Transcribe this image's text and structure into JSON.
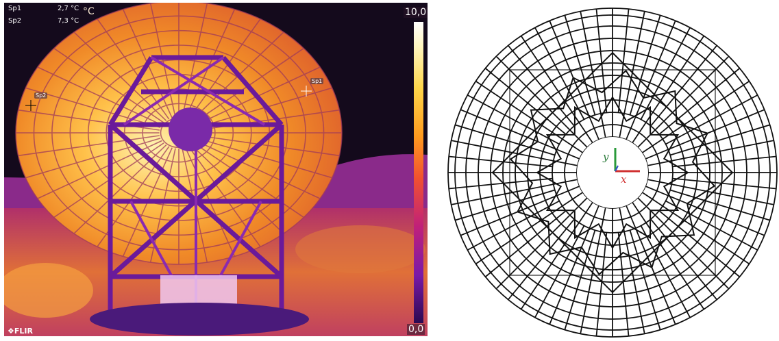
{
  "thermal": {
    "spots": [
      {
        "label": "Sp1",
        "value": "2,7 °C"
      },
      {
        "label": "Sp2",
        "value": "7,3 °C"
      }
    ],
    "unit": "°C",
    "scale": {
      "max": "10,0",
      "min": "0,0"
    },
    "marker_labels": [
      "Sp1",
      "Sp2"
    ],
    "logo": "FLIR"
  },
  "model": {
    "axis_x": "x",
    "axis_y": "y",
    "colors": {
      "x_axis": "#d03030",
      "y_axis": "#2a9a3a",
      "z_axis": "#3050c8"
    }
  }
}
